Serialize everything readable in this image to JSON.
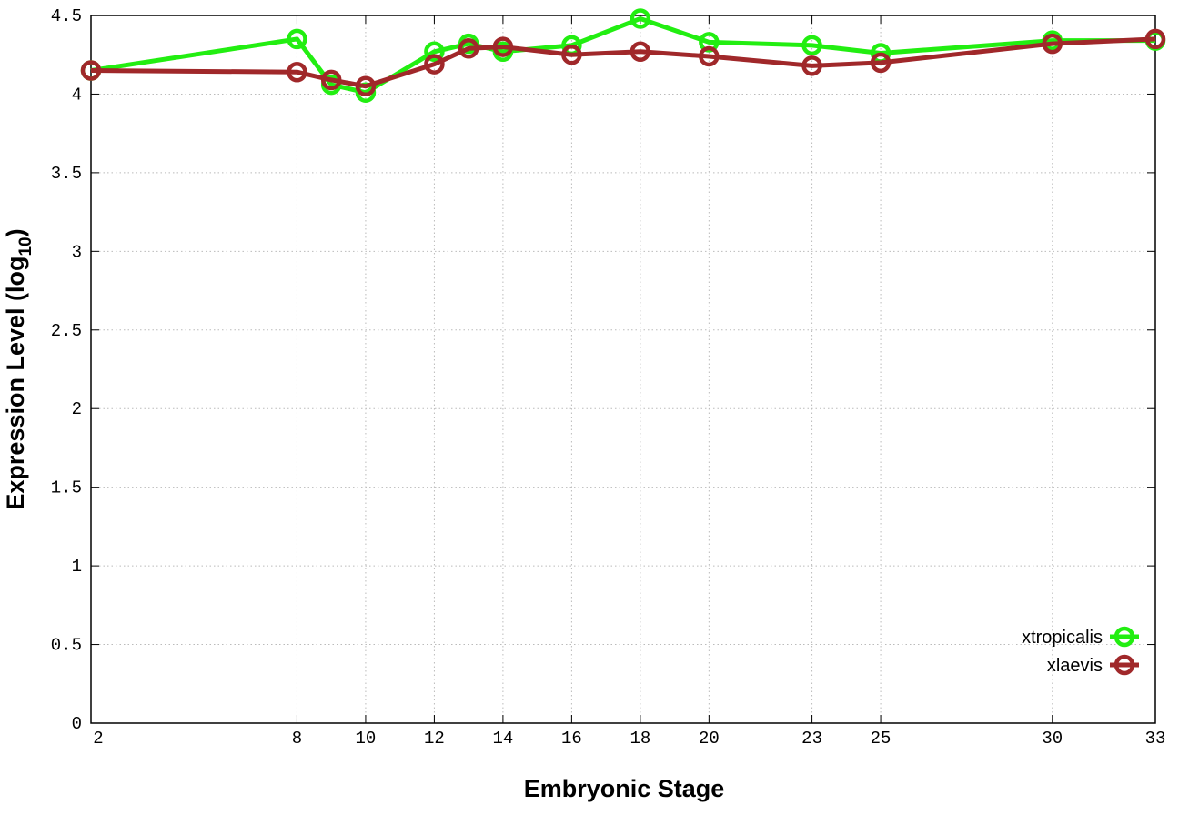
{
  "chart_data": {
    "type": "line",
    "title": "",
    "xlabel": "Embryonic Stage",
    "ylabel": "Expression Level (log",
    "ylabel_subscript": "10",
    "ylabel_suffix": ")",
    "x": [
      2,
      8,
      9,
      10,
      12,
      13,
      14,
      16,
      18,
      20,
      23,
      25,
      30,
      33
    ],
    "x_tick_labels": [
      "2",
      "8",
      "10",
      "12",
      "14",
      "16",
      "18",
      "20",
      "23",
      "25",
      "30",
      "33"
    ],
    "x_tick_values": [
      2,
      8,
      10,
      12,
      14,
      16,
      18,
      20,
      23,
      25,
      30,
      33
    ],
    "y_tick_labels": [
      "0",
      "0.5",
      "1",
      "1.5",
      "2",
      "2.5",
      "3",
      "3.5",
      "4",
      "4.5"
    ],
    "y_tick_values": [
      0,
      0.5,
      1,
      1.5,
      2,
      2.5,
      3,
      3.5,
      4,
      4.5
    ],
    "xlim": [
      2,
      33
    ],
    "ylim": [
      0,
      4.5
    ],
    "grid": true,
    "legend_position": "bottom-right",
    "series": [
      {
        "name": "xtropicalis",
        "color": "#22ee11",
        "values": [
          4.15,
          4.35,
          4.06,
          4.01,
          4.27,
          4.32,
          4.27,
          4.31,
          4.48,
          4.33,
          4.31,
          4.26,
          4.34,
          4.34
        ]
      },
      {
        "name": "xlaevis",
        "color": "#a0282a",
        "values": [
          4.15,
          4.14,
          4.09,
          4.05,
          4.19,
          4.29,
          4.3,
          4.25,
          4.27,
          4.24,
          4.18,
          4.2,
          4.32,
          4.35
        ]
      }
    ]
  }
}
